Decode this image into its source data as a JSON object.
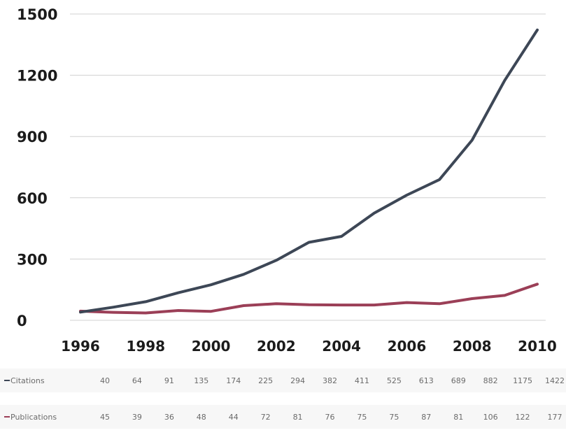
{
  "chart_data": {
    "type": "line",
    "title": "",
    "xlabel": "",
    "ylabel": "",
    "x": [
      1996,
      1997,
      1998,
      1999,
      2000,
      2001,
      2002,
      2003,
      2004,
      2005,
      2006,
      2007,
      2008,
      2009,
      2010
    ],
    "x_tick_labels": [
      "1996",
      "1998",
      "2000",
      "2002",
      "2004",
      "2006",
      "2008",
      "2010"
    ],
    "y_tick_labels": [
      "0",
      "300",
      "600",
      "900",
      "1200",
      "1500"
    ],
    "ylim": [
      0,
      1500
    ],
    "grid": true,
    "series": [
      {
        "name": "Citations",
        "color": "#3d4756",
        "values": [
          40,
          64,
          91,
          135,
          174,
          225,
          294,
          382,
          411,
          525,
          613,
          689,
          882,
          1175,
          1422
        ]
      },
      {
        "name": "Publications",
        "color": "#9b3f57",
        "values": [
          45,
          39,
          36,
          48,
          44,
          72,
          81,
          76,
          75,
          75,
          87,
          81,
          106,
          122,
          177
        ]
      }
    ]
  }
}
